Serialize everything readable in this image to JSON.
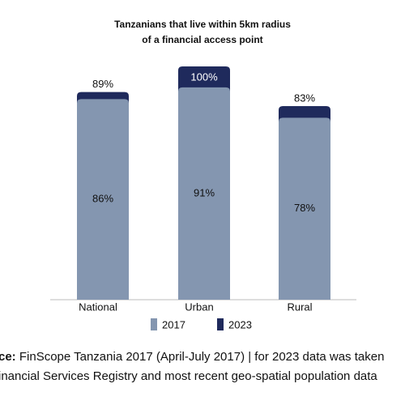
{
  "chart_data": {
    "type": "bar",
    "overlap": true,
    "title": [
      "Tanzanians that live within 5km radius",
      "of a financial access point"
    ],
    "categories": [
      "National",
      "Urban",
      "Rural"
    ],
    "series": [
      {
        "name": "2023",
        "color": "#1f2a5c",
        "values": [
          89,
          100,
          83
        ],
        "value_labels": [
          "89%",
          "100%",
          "83%"
        ]
      },
      {
        "name": "2017",
        "color": "#8496b0",
        "values": [
          86,
          91,
          78
        ],
        "value_labels": [
          "86%",
          "91%",
          "78%"
        ]
      }
    ],
    "legend_order": [
      "2017",
      "2023"
    ],
    "source": {
      "label": "ce:",
      "lines": [
        " FinScope Tanzania 2017 (April-July 2017) | for 2023 data was taken",
        "inancial Services Registry and most recent geo-spatial population data"
      ]
    }
  }
}
